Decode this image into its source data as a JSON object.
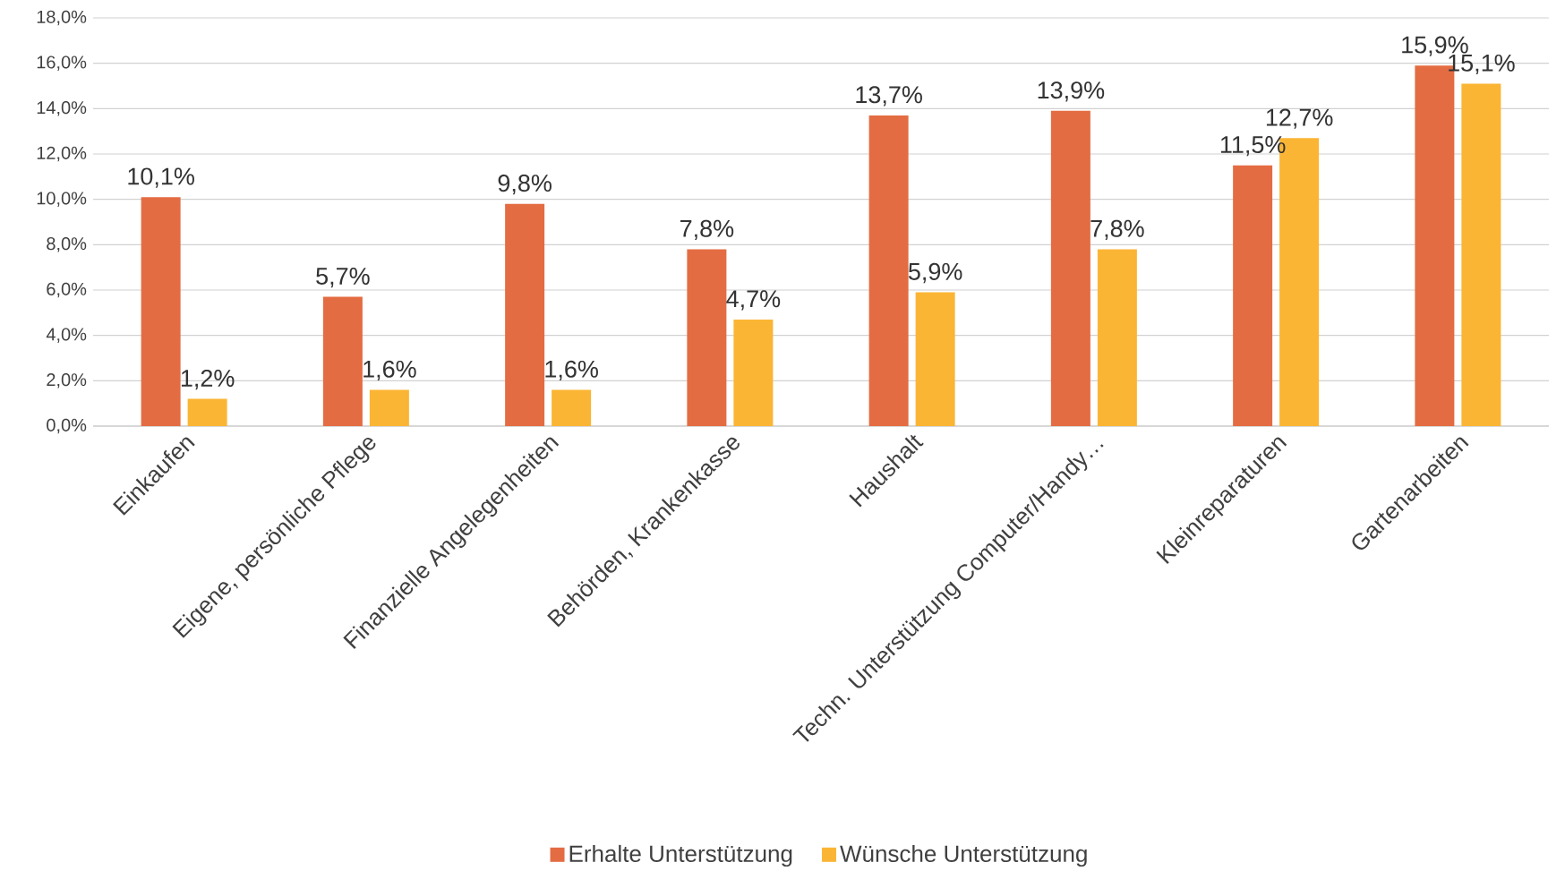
{
  "chart_data": {
    "type": "bar",
    "categories": [
      "Einkaufen",
      "Eigene, persönliche Pflege",
      "Finanzielle Angelegenheiten",
      "Behörden, Krankenkasse",
      "Haushalt",
      "Techn. Unterstützung Computer/Handy…",
      "Kleinreparaturen",
      "Gartenarbeiten"
    ],
    "series": [
      {
        "name": "Erhalte Unterstützung",
        "color": "#e46c42",
        "values": [
          10.1,
          5.7,
          9.8,
          7.8,
          13.7,
          13.9,
          11.5,
          15.9
        ],
        "value_labels": [
          "10,1%",
          "5,7%",
          "9,8%",
          "7,8%",
          "13,7%",
          "13,9%",
          "11,5%",
          "15,9%"
        ]
      },
      {
        "name": "Wünsche Unterstützung",
        "color": "#fbb534",
        "values": [
          1.2,
          1.6,
          1.6,
          4.7,
          5.9,
          7.8,
          12.7,
          15.1
        ],
        "value_labels": [
          "1,2%",
          "1,6%",
          "1,6%",
          "4,7%",
          "5,9%",
          "7,8%",
          "12,7%",
          "15,1%"
        ]
      }
    ],
    "ylim": [
      0,
      18
    ],
    "yticks": [
      {
        "value": 0,
        "label": "0,0%"
      },
      {
        "value": 2,
        "label": "2,0%"
      },
      {
        "value": 4,
        "label": "4,0%"
      },
      {
        "value": 6,
        "label": "6,0%"
      },
      {
        "value": 8,
        "label": "8,0%"
      },
      {
        "value": 10,
        "label": "10,0%"
      },
      {
        "value": 12,
        "label": "12,0%"
      },
      {
        "value": 14,
        "label": "14,0%"
      },
      {
        "value": 16,
        "label": "16,0%"
      },
      {
        "value": 18,
        "label": "18,0%"
      }
    ],
    "grid": "y",
    "legend": "bottom"
  }
}
